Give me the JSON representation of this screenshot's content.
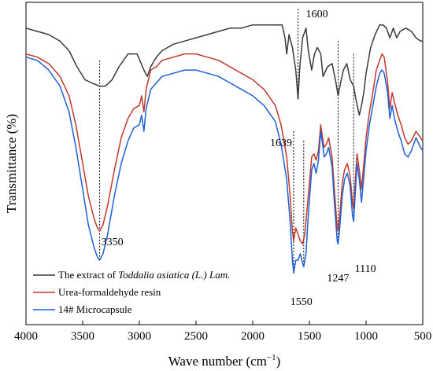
{
  "chart_data": {
    "type": "line",
    "xlabel": "Wave number (cm",
    "xlabel_sup": "−1",
    "xlabel_close": ")",
    "ylabel": "Transmittance (%)",
    "xlim": [
      4000,
      500
    ],
    "x_reversed": true,
    "xticks": [
      4000,
      3500,
      3000,
      2500,
      2000,
      1500,
      1000,
      500
    ],
    "ylim": [
      0,
      100
    ],
    "y_ticklabels_shown": false,
    "grid": false,
    "legend_placement": "bottom-left",
    "series": [
      {
        "name": "The extract of Toddalia asiatica (L.) Lam.",
        "name_plain": "The extract of ",
        "name_italic": "Toddalia asiatica (L.) Lam.",
        "color": "#3a3a3a",
        "points": [
          [
            4000,
            92
          ],
          [
            3900,
            91
          ],
          [
            3800,
            90
          ],
          [
            3700,
            88
          ],
          [
            3620,
            85
          ],
          [
            3550,
            80
          ],
          [
            3480,
            76
          ],
          [
            3420,
            75
          ],
          [
            3350,
            74
          ],
          [
            3300,
            74
          ],
          [
            3240,
            76
          ],
          [
            3180,
            80
          ],
          [
            3100,
            84
          ],
          [
            3020,
            84
          ],
          [
            2960,
            79
          ],
          [
            2930,
            77
          ],
          [
            2900,
            80
          ],
          [
            2850,
            83
          ],
          [
            2800,
            85
          ],
          [
            2700,
            87
          ],
          [
            2600,
            88
          ],
          [
            2500,
            89
          ],
          [
            2400,
            90
          ],
          [
            2300,
            91
          ],
          [
            2200,
            92
          ],
          [
            2100,
            92
          ],
          [
            2000,
            93
          ],
          [
            1900,
            93
          ],
          [
            1800,
            93
          ],
          [
            1740,
            93
          ],
          [
            1715,
            89
          ],
          [
            1700,
            84
          ],
          [
            1680,
            90
          ],
          [
            1650,
            86
          ],
          [
            1620,
            79
          ],
          [
            1600,
            70
          ],
          [
            1585,
            80
          ],
          [
            1560,
            89
          ],
          [
            1530,
            92
          ],
          [
            1510,
            85
          ],
          [
            1480,
            79
          ],
          [
            1455,
            84
          ],
          [
            1430,
            86
          ],
          [
            1400,
            84
          ],
          [
            1380,
            77
          ],
          [
            1340,
            80
          ],
          [
            1300,
            81
          ],
          [
            1265,
            75
          ],
          [
            1247,
            71
          ],
          [
            1225,
            75
          ],
          [
            1200,
            79
          ],
          [
            1170,
            81
          ],
          [
            1140,
            76
          ],
          [
            1110,
            74
          ],
          [
            1090,
            70
          ],
          [
            1060,
            65
          ],
          [
            1040,
            68
          ],
          [
            1020,
            72
          ],
          [
            1000,
            78
          ],
          [
            960,
            86
          ],
          [
            920,
            90
          ],
          [
            880,
            93
          ],
          [
            850,
            93
          ],
          [
            820,
            92
          ],
          [
            790,
            89
          ],
          [
            760,
            92
          ],
          [
            730,
            89
          ],
          [
            700,
            91
          ],
          [
            650,
            92
          ],
          [
            600,
            91
          ],
          [
            560,
            89
          ],
          [
            520,
            88
          ],
          [
            500,
            88
          ]
        ]
      },
      {
        "name": "Urea-formaldehyde resin",
        "color": "#c0392b",
        "points": [
          [
            4000,
            84
          ],
          [
            3900,
            83
          ],
          [
            3800,
            81
          ],
          [
            3700,
            77
          ],
          [
            3620,
            71
          ],
          [
            3560,
            62
          ],
          [
            3500,
            50
          ],
          [
            3450,
            40
          ],
          [
            3400,
            33
          ],
          [
            3370,
            30
          ],
          [
            3350,
            29
          ],
          [
            3320,
            31
          ],
          [
            3280,
            37
          ],
          [
            3220,
            48
          ],
          [
            3160,
            58
          ],
          [
            3100,
            64
          ],
          [
            3050,
            67
          ],
          [
            3000,
            68
          ],
          [
            2980,
            71
          ],
          [
            2960,
            66
          ],
          [
            2940,
            73
          ],
          [
            2900,
            79
          ],
          [
            2850,
            80
          ],
          [
            2800,
            82
          ],
          [
            2700,
            83
          ],
          [
            2600,
            84
          ],
          [
            2500,
            84
          ],
          [
            2400,
            83
          ],
          [
            2300,
            82
          ],
          [
            2200,
            80
          ],
          [
            2100,
            78
          ],
          [
            2000,
            76
          ],
          [
            1900,
            73
          ],
          [
            1800,
            68
          ],
          [
            1750,
            62
          ],
          [
            1700,
            52
          ],
          [
            1670,
            40
          ],
          [
            1650,
            29
          ],
          [
            1639,
            26
          ],
          [
            1620,
            30
          ],
          [
            1600,
            28
          ],
          [
            1580,
            26
          ],
          [
            1560,
            25
          ],
          [
            1540,
            28
          ],
          [
            1510,
            40
          ],
          [
            1480,
            52
          ],
          [
            1460,
            53
          ],
          [
            1440,
            51
          ],
          [
            1420,
            54
          ],
          [
            1400,
            62
          ],
          [
            1380,
            57
          ],
          [
            1370,
            55
          ],
          [
            1350,
            56
          ],
          [
            1330,
            58
          ],
          [
            1300,
            52
          ],
          [
            1280,
            42
          ],
          [
            1255,
            30
          ],
          [
            1247,
            29
          ],
          [
            1235,
            33
          ],
          [
            1210,
            44
          ],
          [
            1190,
            48
          ],
          [
            1165,
            50
          ],
          [
            1140,
            46
          ],
          [
            1120,
            38
          ],
          [
            1110,
            36
          ],
          [
            1100,
            42
          ],
          [
            1080,
            53
          ],
          [
            1060,
            48
          ],
          [
            1040,
            42
          ],
          [
            1020,
            50
          ],
          [
            1000,
            58
          ],
          [
            970,
            66
          ],
          [
            940,
            72
          ],
          [
            910,
            79
          ],
          [
            880,
            82
          ],
          [
            860,
            84
          ],
          [
            840,
            83
          ],
          [
            810,
            75
          ],
          [
            790,
            67
          ],
          [
            770,
            72
          ],
          [
            750,
            69
          ],
          [
            720,
            65
          ],
          [
            690,
            62
          ],
          [
            660,
            58
          ],
          [
            630,
            56
          ],
          [
            600,
            57
          ],
          [
            560,
            60
          ],
          [
            520,
            58
          ],
          [
            500,
            57
          ]
        ]
      },
      {
        "name": "14# Microcapsule",
        "color": "#1f5fd8",
        "points": [
          [
            4000,
            83
          ],
          [
            3900,
            82
          ],
          [
            3800,
            79
          ],
          [
            3700,
            74
          ],
          [
            3620,
            66
          ],
          [
            3560,
            55
          ],
          [
            3500,
            42
          ],
          [
            3450,
            31
          ],
          [
            3400,
            24
          ],
          [
            3370,
            21
          ],
          [
            3350,
            20
          ],
          [
            3320,
            22
          ],
          [
            3280,
            28
          ],
          [
            3220,
            40
          ],
          [
            3160,
            50
          ],
          [
            3100,
            57
          ],
          [
            3050,
            61
          ],
          [
            3000,
            62
          ],
          [
            2980,
            65
          ],
          [
            2960,
            60
          ],
          [
            2940,
            67
          ],
          [
            2900,
            73
          ],
          [
            2850,
            75
          ],
          [
            2800,
            77
          ],
          [
            2700,
            78
          ],
          [
            2600,
            79
          ],
          [
            2500,
            79
          ],
          [
            2400,
            78
          ],
          [
            2300,
            77
          ],
          [
            2200,
            75
          ],
          [
            2100,
            73
          ],
          [
            2000,
            71
          ],
          [
            1900,
            68
          ],
          [
            1800,
            63
          ],
          [
            1750,
            56
          ],
          [
            1700,
            45
          ],
          [
            1670,
            32
          ],
          [
            1650,
            20
          ],
          [
            1639,
            16
          ],
          [
            1620,
            20
          ],
          [
            1600,
            20
          ],
          [
            1580,
            22
          ],
          [
            1560,
            19
          ],
          [
            1550,
            18
          ],
          [
            1530,
            22
          ],
          [
            1510,
            34
          ],
          [
            1480,
            48
          ],
          [
            1460,
            50
          ],
          [
            1440,
            47
          ],
          [
            1420,
            51
          ],
          [
            1400,
            60
          ],
          [
            1380,
            55
          ],
          [
            1370,
            52
          ],
          [
            1350,
            53
          ],
          [
            1330,
            55
          ],
          [
            1300,
            49
          ],
          [
            1280,
            38
          ],
          [
            1255,
            26
          ],
          [
            1247,
            25
          ],
          [
            1235,
            29
          ],
          [
            1210,
            40
          ],
          [
            1190,
            45
          ],
          [
            1165,
            47
          ],
          [
            1140,
            43
          ],
          [
            1120,
            34
          ],
          [
            1110,
            32
          ],
          [
            1100,
            38
          ],
          [
            1080,
            50
          ],
          [
            1060,
            45
          ],
          [
            1040,
            38
          ],
          [
            1020,
            46
          ],
          [
            1000,
            54
          ],
          [
            970,
            62
          ],
          [
            940,
            68
          ],
          [
            910,
            74
          ],
          [
            880,
            78
          ],
          [
            860,
            79
          ],
          [
            840,
            78
          ],
          [
            810,
            72
          ],
          [
            790,
            64
          ],
          [
            770,
            68
          ],
          [
            750,
            64
          ],
          [
            720,
            60
          ],
          [
            690,
            57
          ],
          [
            660,
            53
          ],
          [
            630,
            52
          ],
          [
            600,
            54
          ],
          [
            560,
            58
          ],
          [
            520,
            55
          ],
          [
            500,
            54
          ]
        ]
      }
    ],
    "peak_markers": [
      {
        "wavenumber": 3350,
        "label": "3350",
        "y_top": 82,
        "y_bottom": 20
      },
      {
        "wavenumber": 1639,
        "label": "1639",
        "y_top": 60,
        "y_bottom": 16
      },
      {
        "wavenumber": 1600,
        "label": "1600",
        "y_top": 98,
        "y_bottom": 70
      },
      {
        "wavenumber": 1550,
        "label": "1550",
        "y_top": 57,
        "y_bottom": 18
      },
      {
        "wavenumber": 1247,
        "label": "1247",
        "y_top": 88,
        "y_bottom": 25
      },
      {
        "wavenumber": 1110,
        "label": "1110",
        "y_top": 84,
        "y_bottom": 32
      }
    ]
  }
}
